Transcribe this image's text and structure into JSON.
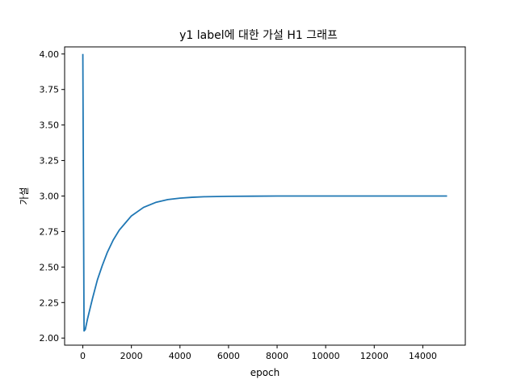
{
  "chart_data": {
    "type": "line",
    "title": "y1 label에 대한 가설 H1 그래프",
    "xlabel": "epoch",
    "ylabel": "가설",
    "xlim": [
      -750,
      15750
    ],
    "ylim": [
      1.95,
      4.05
    ],
    "xticks": [
      0,
      2000,
      4000,
      6000,
      8000,
      10000,
      12000,
      14000
    ],
    "xtick_labels": [
      "0",
      "2000",
      "4000",
      "6000",
      "8000",
      "10000",
      "12000",
      "14000"
    ],
    "yticks": [
      2.0,
      2.25,
      2.5,
      2.75,
      3.0,
      3.25,
      3.5,
      3.75,
      4.0
    ],
    "ytick_labels": [
      "2.00",
      "2.25",
      "2.50",
      "2.75",
      "3.00",
      "3.25",
      "3.50",
      "3.75",
      "4.00"
    ],
    "grid": false,
    "series": [
      {
        "color": "#1f77b4",
        "x": [
          0,
          50,
          100,
          200,
          400,
          600,
          800,
          1000,
          1250,
          1500,
          1750,
          2000,
          2500,
          3000,
          3500,
          4000,
          4500,
          5000,
          6000,
          7000,
          8000,
          10000,
          12000,
          15000
        ],
        "y": [
          4.0,
          2.05,
          2.06,
          2.14,
          2.28,
          2.41,
          2.51,
          2.6,
          2.69,
          2.76,
          2.81,
          2.86,
          2.92,
          2.955,
          2.975,
          2.985,
          2.991,
          2.995,
          2.998,
          2.999,
          3.0,
          3.0,
          3.0,
          3.0
        ]
      }
    ]
  }
}
